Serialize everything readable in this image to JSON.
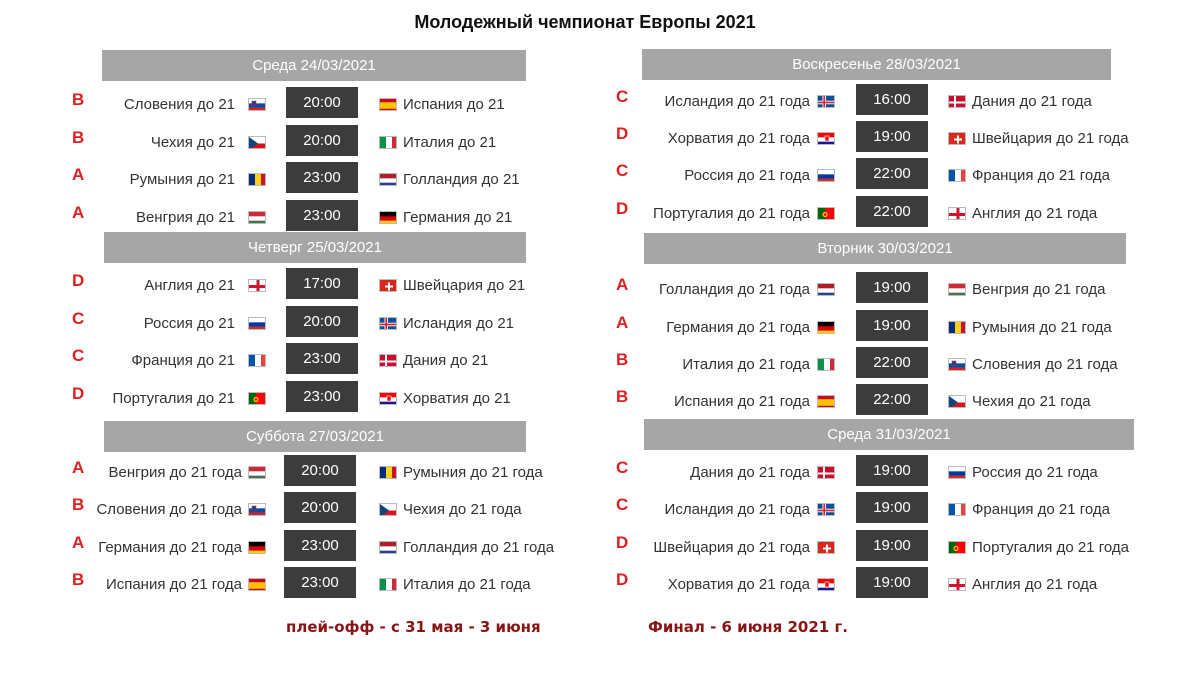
{
  "title": "Молодежный чемпионат Европы 2021",
  "colors": {
    "group": "#e02020",
    "header": "#a6a6a6",
    "time_bg": "#3c3c3c",
    "note": "#8a1414"
  },
  "days": [
    {
      "header": "Среда 24/03/2021",
      "matches": [
        {
          "group": "B",
          "home": "Словения до 21",
          "home_flag": "slovenia",
          "time": "20:00",
          "away": "Испания до 21",
          "away_flag": "spain"
        },
        {
          "group": "B",
          "home": "Чехия до 21",
          "home_flag": "czech",
          "time": "20:00",
          "away": "Италия до 21",
          "away_flag": "italy"
        },
        {
          "group": "A",
          "home": "Румыния до 21",
          "home_flag": "romania",
          "time": "23:00",
          "away": "Голландия до 21",
          "away_flag": "netherlands"
        },
        {
          "group": "A",
          "home": "Венгрия до 21",
          "home_flag": "hungary",
          "time": "23:00",
          "away": "Германия до 21",
          "away_flag": "germany"
        }
      ]
    },
    {
      "header": "Четверг 25/03/2021",
      "matches": [
        {
          "group": "D",
          "home": "Англия до 21",
          "home_flag": "england",
          "time": "17:00",
          "away": "Швейцария до 21",
          "away_flag": "switzerland"
        },
        {
          "group": "C",
          "home": "Россия до 21",
          "home_flag": "russia",
          "time": "20:00",
          "away": "Исландия до 21",
          "away_flag": "iceland"
        },
        {
          "group": "C",
          "home": "Франция до 21",
          "home_flag": "france",
          "time": "23:00",
          "away": "Дания до 21",
          "away_flag": "denmark"
        },
        {
          "group": "D",
          "home": "Португалия до 21",
          "home_flag": "portugal",
          "time": "23:00",
          "away": "Хорватия до 21",
          "away_flag": "croatia"
        }
      ]
    },
    {
      "header": "Суббота 27/03/2021",
      "matches": [
        {
          "group": "A",
          "home": "Венгрия до 21 года",
          "home_flag": "hungary",
          "time": "20:00",
          "away": "Румыния до 21 года",
          "away_flag": "romania"
        },
        {
          "group": "B",
          "home": "Словения до 21 года",
          "home_flag": "slovenia",
          "time": "20:00",
          "away": "Чехия до 21 года",
          "away_flag": "czech"
        },
        {
          "group": "A",
          "home": "Германия до 21 года",
          "home_flag": "germany",
          "time": "23:00",
          "away": "Голландия до 21 года",
          "away_flag": "netherlands"
        },
        {
          "group": "B",
          "home": "Испания до 21 года",
          "home_flag": "spain",
          "time": "23:00",
          "away": "Италия до 21 года",
          "away_flag": "italy"
        }
      ]
    },
    {
      "header": "Воскресенье 28/03/2021",
      "matches": [
        {
          "group": "C",
          "home": "Исландия до 21 года",
          "home_flag": "iceland",
          "time": "16:00",
          "away": "Дания до 21 года",
          "away_flag": "denmark"
        },
        {
          "group": "D",
          "home": "Хорватия до 21 года",
          "home_flag": "croatia",
          "time": "19:00",
          "away": "Швейцария до 21 года",
          "away_flag": "switzerland"
        },
        {
          "group": "C",
          "home": "Россия до 21 года",
          "home_flag": "russia",
          "time": "22:00",
          "away": "Франция до 21 года",
          "away_flag": "france"
        },
        {
          "group": "D",
          "home": "Португалия до 21 года",
          "home_flag": "portugal",
          "time": "22:00",
          "away": "Англия до 21 года",
          "away_flag": "england"
        }
      ]
    },
    {
      "header": "Вторник 30/03/2021",
      "matches": [
        {
          "group": "A",
          "home": "Голландия до 21 года",
          "home_flag": "netherlands",
          "time": "19:00",
          "away": "Венгрия до 21 года",
          "away_flag": "hungary"
        },
        {
          "group": "A",
          "home": "Германия до 21 года",
          "home_flag": "germany",
          "time": "19:00",
          "away": "Румыния до 21 года",
          "away_flag": "romania"
        },
        {
          "group": "B",
          "home": "Италия до 21 года",
          "home_flag": "italy",
          "time": "22:00",
          "away": "Словения до 21 года",
          "away_flag": "slovenia"
        },
        {
          "group": "B",
          "home": "Испания до 21 года",
          "home_flag": "spain",
          "time": "22:00",
          "away": "Чехия до 21 года",
          "away_flag": "czech"
        }
      ]
    },
    {
      "header": "Среда 31/03/2021",
      "matches": [
        {
          "group": "C",
          "home": "Дания до 21 года",
          "home_flag": "denmark",
          "time": "19:00",
          "away": "Россия до 21 года",
          "away_flag": "russia"
        },
        {
          "group": "C",
          "home": "Исландия до 21 года",
          "home_flag": "iceland",
          "time": "19:00",
          "away": "Франция до 21 года",
          "away_flag": "france"
        },
        {
          "group": "D",
          "home": "Швейцария до 21 года",
          "home_flag": "switzerland",
          "time": "19:00",
          "away": "Португалия до 21 года",
          "away_flag": "portugal"
        },
        {
          "group": "D",
          "home": "Хорватия до 21 года",
          "home_flag": "croatia",
          "time": "19:00",
          "away": "Англия до 21 года",
          "away_flag": "england"
        }
      ]
    }
  ],
  "notes": {
    "playoff": "плей-офф  - с 31 мая - 3 июня",
    "final": "Финал - 6 июня 2021 г."
  }
}
